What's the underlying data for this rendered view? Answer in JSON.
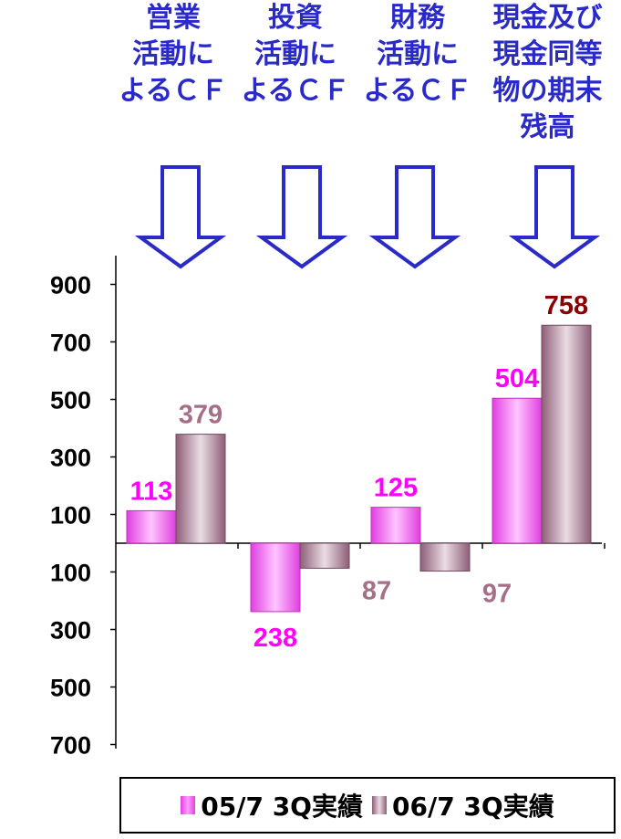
{
  "headers": [
    "営業\n活動に\nよるＣＦ",
    "投資\n活動に\nよるＣＦ",
    "財務\n活動に\nよるＣＦ",
    "現金及び\n現金同等\n物の期末\n残高"
  ],
  "colors": {
    "header_text": "#2a2ac8",
    "arrow_stroke": "#2a2ac8",
    "series0_label": "#ff00ff",
    "series1_label": "#a56f88",
    "series1_label_highlight": "#8b0000"
  },
  "chart_data": {
    "type": "bar",
    "categories": [
      "営業活動によるＣＦ",
      "投資活動によるＣＦ",
      "財務活動によるＣＦ",
      "現金及び現金同等物の期末残高"
    ],
    "series": [
      {
        "name": "05/7 3Q実績",
        "values": [
          113,
          -238,
          125,
          504
        ],
        "labels": [
          "113",
          "238",
          "125",
          "504"
        ]
      },
      {
        "name": "06/7 3Q実績",
        "values": [
          379,
          -87,
          -97,
          758
        ],
        "labels": [
          "379",
          "87",
          "97",
          "758"
        ]
      }
    ],
    "ylim": [
      -700,
      900
    ],
    "yticks": [
      900,
      700,
      500,
      300,
      100,
      -100,
      -300,
      -500,
      -700
    ],
    "ytick_labels": [
      "900",
      "700",
      "500",
      "300",
      "100",
      "100",
      "300",
      "500",
      "700"
    ],
    "legend_position": "bottom",
    "grid": false
  }
}
